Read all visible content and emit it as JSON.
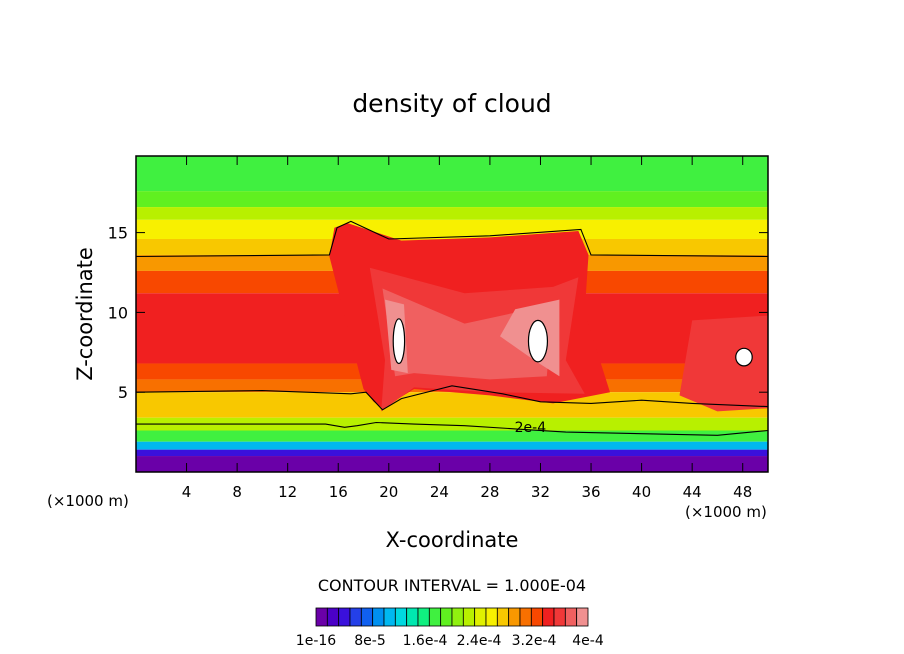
{
  "chart_data": {
    "type": "heatmap",
    "title": "density of cloud",
    "xlabel": "X-coordinate",
    "ylabel": "Z-coordinate",
    "x_unit_left": "(×1000 m)",
    "x_unit_right": "(×1000 m)",
    "xlim": [
      0,
      50
    ],
    "ylim": [
      0,
      19.8
    ],
    "x_ticks": [
      4,
      8,
      12,
      16,
      20,
      24,
      28,
      32,
      36,
      40,
      44,
      48
    ],
    "y_ticks": [
      5,
      10,
      15
    ],
    "contour_interval_label": "CONTOUR INTERVAL = 1.000E-04",
    "contour_label": "2e-4",
    "colorbar": {
      "min": 1e-16,
      "max": 0.0004,
      "levels": 24,
      "tick_labels": [
        "1e-16",
        "8e-5",
        "1.6e-4",
        "2.4e-4",
        "3.2e-4",
        "4e-4"
      ],
      "colors": [
        "#6a00a8",
        "#4b00c8",
        "#3a10dc",
        "#2440e8",
        "#1060f0",
        "#0090f0",
        "#00b8f0",
        "#00d8e0",
        "#00e8b0",
        "#10f080",
        "#40f040",
        "#60f020",
        "#90f010",
        "#b8f000",
        "#e0f000",
        "#f8f000",
        "#f8c800",
        "#f89800",
        "#f87000",
        "#f84800",
        "#f02020",
        "#f03838",
        "#f06060",
        "#f09090"
      ]
    }
  }
}
